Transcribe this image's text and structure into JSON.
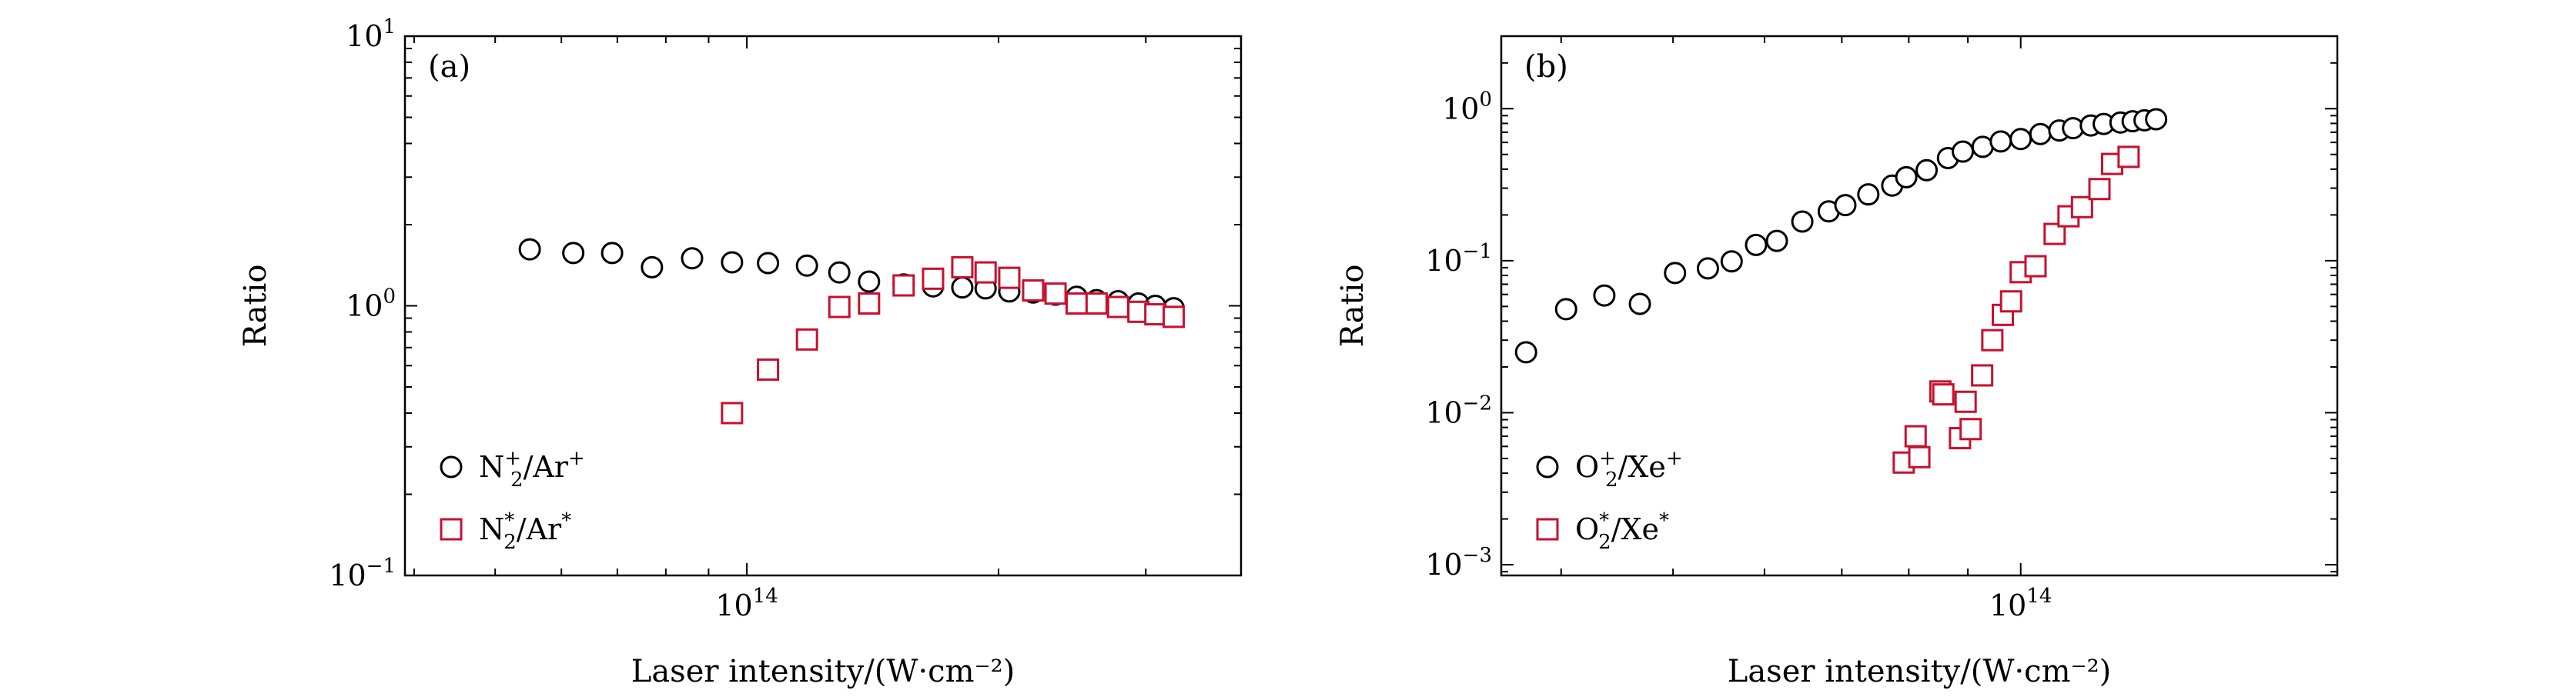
{
  "chart_data": [
    {
      "type": "scatter",
      "panel_label": "(a)",
      "xlabel": "Laser intensity/(W·cm⁻²)",
      "ylabel": "Ratio",
      "xscale": "log",
      "yscale": "log",
      "xlim": [
        39000000000000.0,
        390000000000000.0
      ],
      "ylim": [
        0.1,
        10
      ],
      "xtick_labels": [
        {
          "value": 100000000000000.0,
          "base": "10",
          "exp": "14"
        }
      ],
      "ytick_labels": [
        {
          "value": 10,
          "base": "10",
          "exp": "1"
        },
        {
          "value": 1,
          "base": "10",
          "exp": "0"
        },
        {
          "value": 0.1,
          "base": "10",
          "exp": "−1"
        }
      ],
      "legend_position": "bottom-left",
      "series": [
        {
          "name": "N₂⁺/Ar⁺",
          "legend": {
            "base": "N",
            "sub": "2",
            "sup": "+",
            "rest": "/Ar",
            "rest_sup": "+"
          },
          "marker": "circle",
          "color": "#000000",
          "x": [
            55000000000000.0,
            62000000000000.0,
            69000000000000.0,
            77000000000000.0,
            86000000000000.0,
            96000000000000.0,
            106000000000000.0,
            118000000000000.0,
            129000000000000.0,
            140000000000000.0,
            154000000000000.0,
            167000000000000.0,
            181000000000000.0,
            193000000000000.0,
            206000000000000.0,
            220000000000000.0,
            234000000000000.0,
            248000000000000.0,
            262000000000000.0,
            278000000000000.0,
            294000000000000.0,
            308000000000000.0,
            324000000000000.0
          ],
          "y": [
            1.62,
            1.57,
            1.57,
            1.39,
            1.5,
            1.45,
            1.44,
            1.41,
            1.33,
            1.23,
            1.2,
            1.18,
            1.17,
            1.16,
            1.13,
            1.12,
            1.1,
            1.08,
            1.05,
            1.04,
            1.02,
            1.0,
            0.98
          ]
        },
        {
          "name": "N₂*/Ar*",
          "legend": {
            "base": "N",
            "sub": "2",
            "sup": "*",
            "rest": "/Ar",
            "rest_sup": "*"
          },
          "marker": "square",
          "color": "#c8102e",
          "x": [
            96000000000000.0,
            106000000000000.0,
            118000000000000.0,
            129000000000000.0,
            140000000000000.0,
            154000000000000.0,
            167000000000000.0,
            181000000000000.0,
            193000000000000.0,
            206000000000000.0,
            220000000000000.0,
            234000000000000.0,
            248000000000000.0,
            262000000000000.0,
            278000000000000.0,
            294000000000000.0,
            308000000000000.0,
            324000000000000.0
          ],
          "y": [
            0.4,
            0.58,
            0.75,
            0.99,
            1.02,
            1.19,
            1.26,
            1.39,
            1.33,
            1.27,
            1.14,
            1.11,
            1.02,
            1.02,
            0.99,
            0.95,
            0.93,
            0.91
          ]
        }
      ]
    },
    {
      "type": "scatter",
      "panel_label": "(b)",
      "xlabel": "Laser intensity/(W·cm⁻²)",
      "ylabel": "Ratio",
      "xscale": "log",
      "yscale": "log",
      "xlim": [
        35500000000000.0,
        188000000000000.0
      ],
      "ylim": [
        0.00085,
        3.0
      ],
      "xtick_labels": [
        {
          "value": 100000000000000.0,
          "base": "10",
          "exp": "14"
        }
      ],
      "ytick_labels": [
        {
          "value": 1,
          "base": "10",
          "exp": "0"
        },
        {
          "value": 0.1,
          "base": "10",
          "exp": "−1"
        },
        {
          "value": 0.01,
          "base": "10",
          "exp": "−2"
        },
        {
          "value": 0.001,
          "base": "10",
          "exp": "−3"
        }
      ],
      "legend_position": "bottom-left",
      "series": [
        {
          "name": "O₂⁺/Xe⁺",
          "legend": {
            "base": "O",
            "sub": "2",
            "sup": "+",
            "rest": "/Xe",
            "rest_sup": "+"
          },
          "marker": "circle",
          "color": "#000000",
          "x": [
            37300000000000.0,
            40400000000000.0,
            43600000000000.0,
            46800000000000.0,
            50200000000000.0,
            53600000000000.0,
            56200000000000.0,
            59000000000000.0,
            61500000000000.0,
            64700000000000.0,
            68200000000000.0,
            70500000000000.0,
            73800000000000.0,
            77400000000000.0,
            79600000000000.0,
            82900000000000.0,
            86500000000000.0,
            89100000000000.0,
            92700000000000.0,
            96100000000000.0,
            100000000000000.0,
            104000000000000.0,
            108000000000000.0,
            111000000000000.0,
            115000000000000.0,
            118000000000000.0,
            122000000000000.0,
            125000000000000.0,
            128000000000000.0,
            131000000000000.0
          ],
          "y": [
            0.025,
            0.048,
            0.059,
            0.052,
            0.083,
            0.089,
            0.099,
            0.127,
            0.135,
            0.181,
            0.211,
            0.232,
            0.273,
            0.312,
            0.354,
            0.394,
            0.473,
            0.522,
            0.561,
            0.609,
            0.631,
            0.681,
            0.719,
            0.744,
            0.775,
            0.793,
            0.811,
            0.826,
            0.839,
            0.852
          ]
        },
        {
          "name": "O₂*/Xe*",
          "legend": {
            "base": "O",
            "sub": "2",
            "sup": "*",
            "rest": "/Xe",
            "rest_sup": "*"
          },
          "marker": "square",
          "color": "#c8102e",
          "x": [
            79200000000000.0,
            81100000000000.0,
            81700000000000.0,
            85200000000000.0,
            85700000000000.0,
            88600000000000.0,
            89600000000000.0,
            90500000000000.0,
            92600000000000.0,
            94500000000000.0,
            96500000000000.0,
            98100000000000.0,
            100000000000000.0,
            103000000000000.0,
            107000000000000.0,
            110000000000000.0,
            113000000000000.0,
            117000000000000.0,
            120000000000000.0,
            124000000000000.0
          ],
          "y": [
            0.0047,
            0.007,
            0.0051,
            0.0138,
            0.0132,
            0.0068,
            0.0118,
            0.0078,
            0.0176,
            0.03,
            0.044,
            0.054,
            0.084,
            0.092,
            0.15,
            0.196,
            0.225,
            0.296,
            0.433,
            0.482
          ]
        }
      ]
    }
  ]
}
